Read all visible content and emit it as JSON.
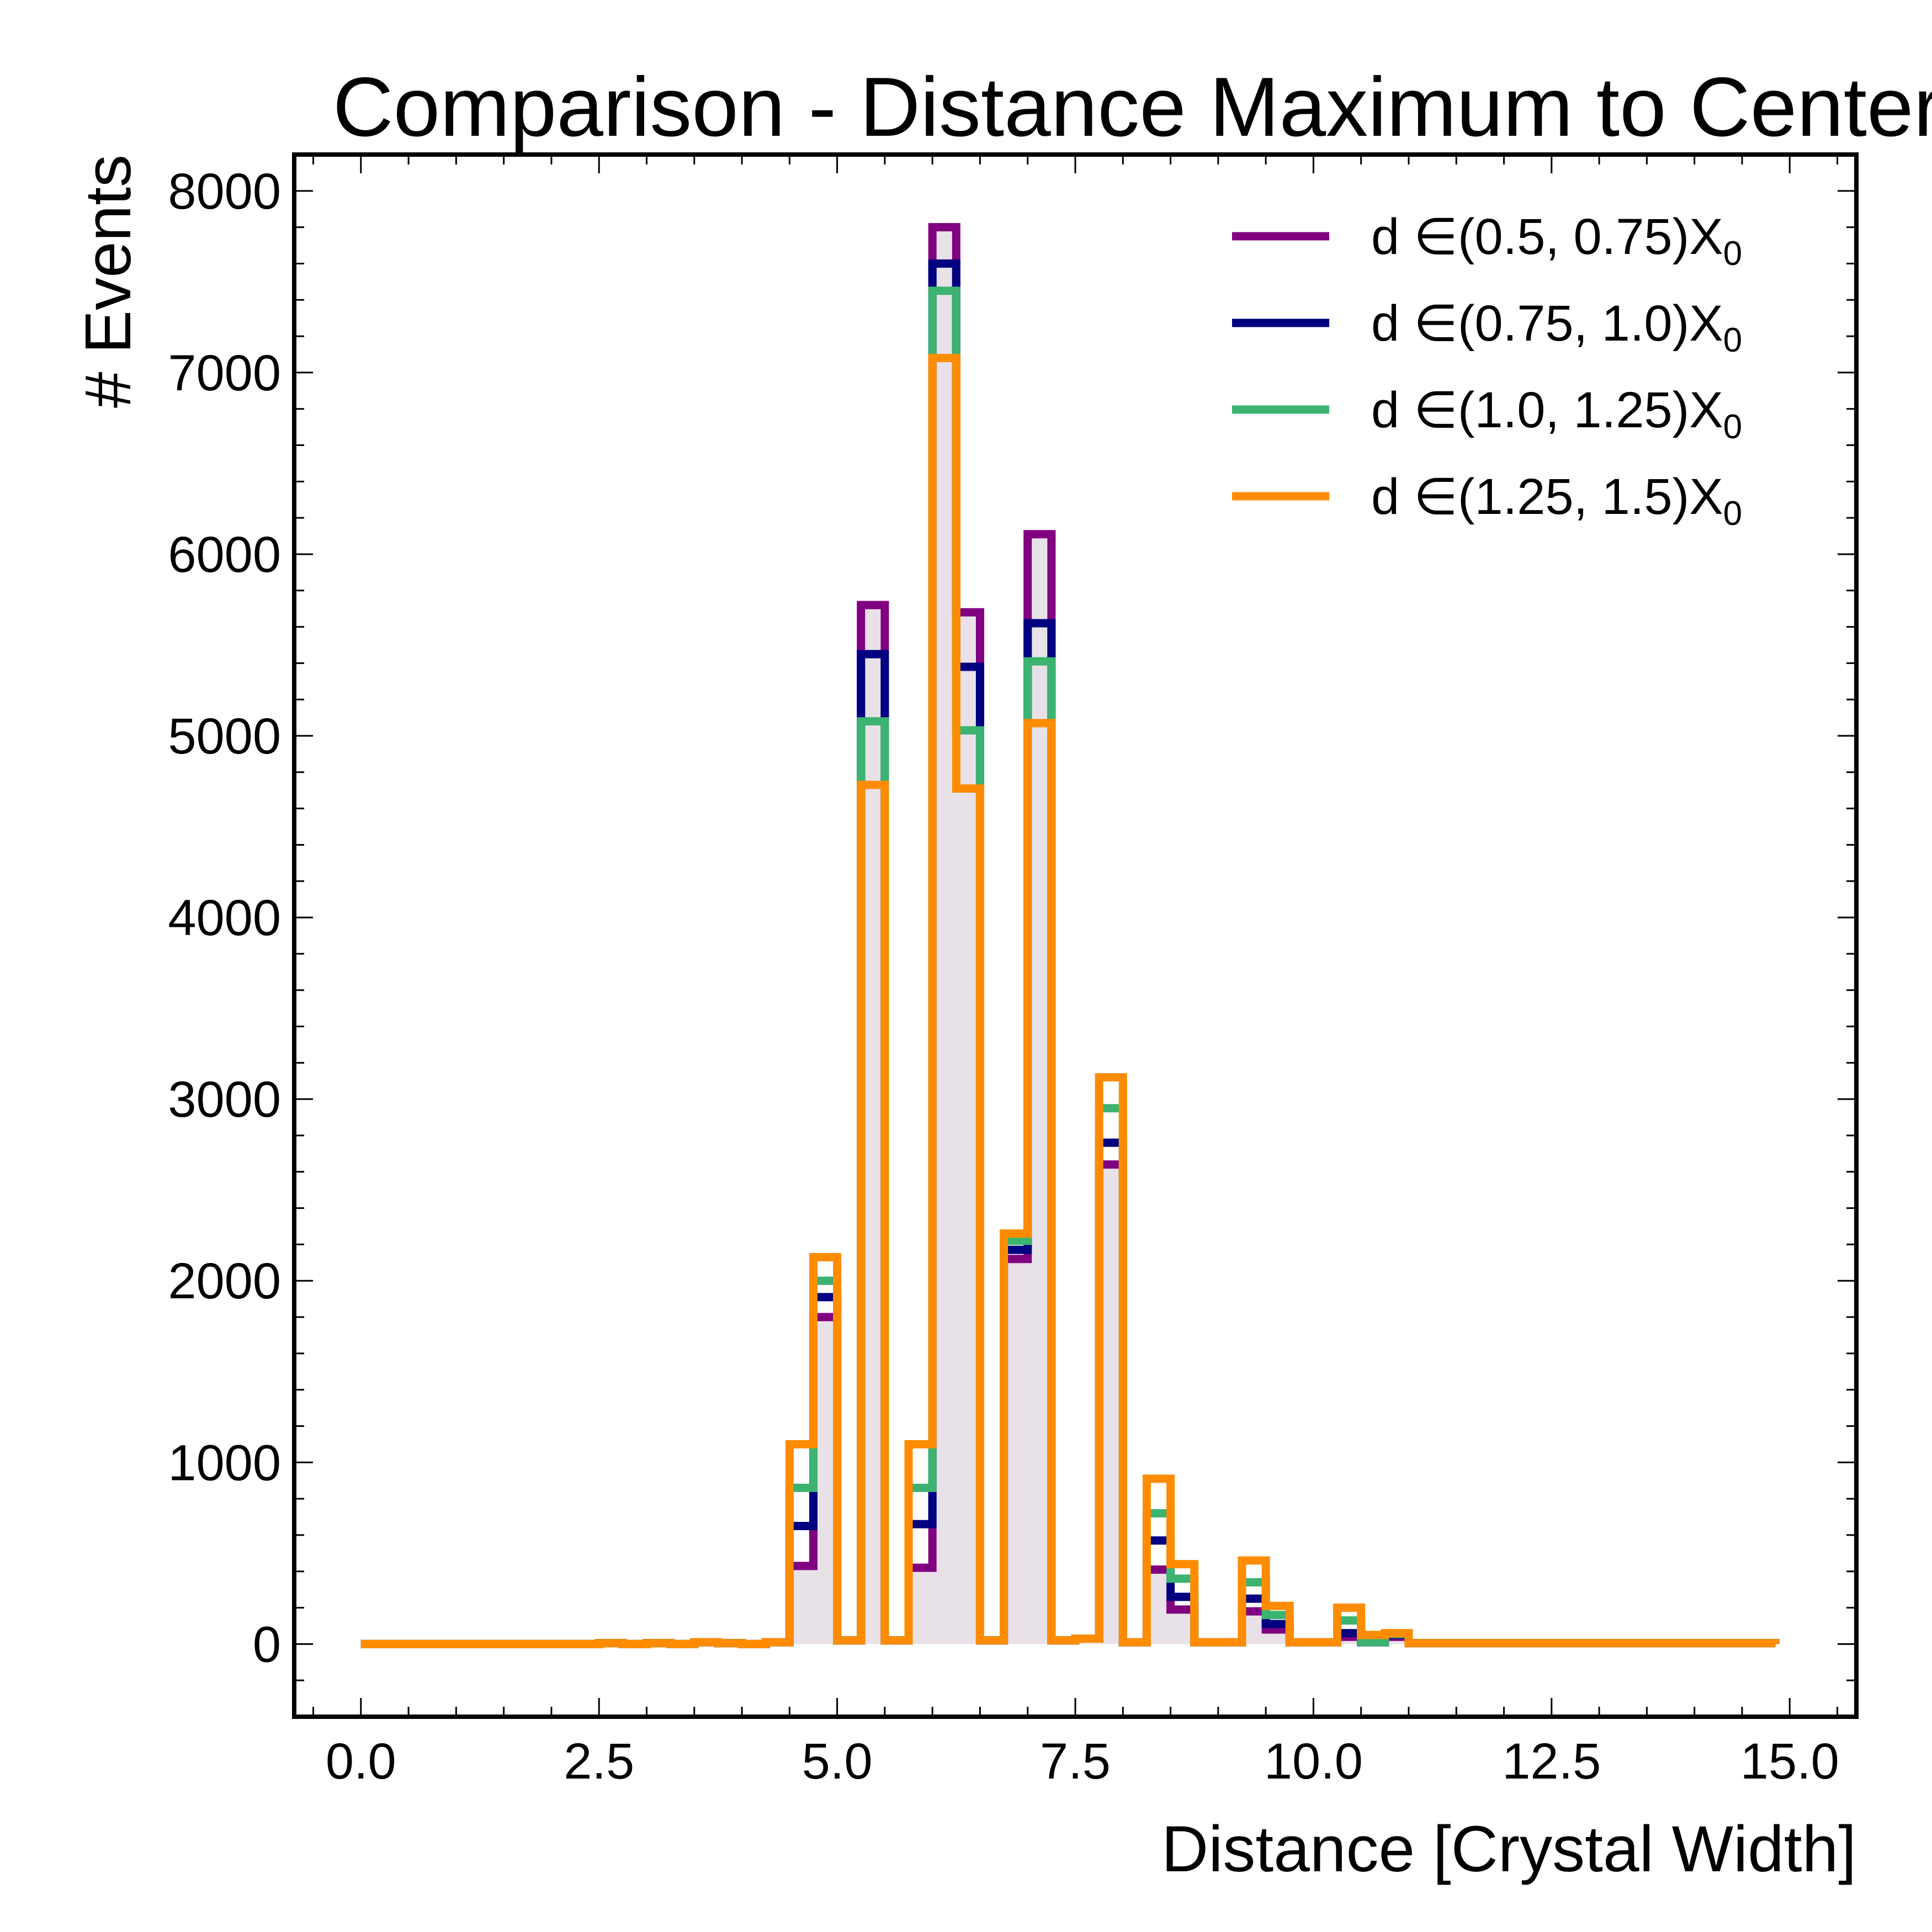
{
  "chart_data": {
    "type": "line",
    "title": "Comparison - Distance Maximum to Center",
    "xlabel": "Distance [Crystal Width]",
    "ylabel": "# Events",
    "xlim": [
      -0.7,
      15.7
    ],
    "ylim": [
      -400,
      8200
    ],
    "xticks": [
      0.0,
      2.5,
      5.0,
      7.5,
      10.0,
      12.5,
      15.0
    ],
    "xtick_labels": [
      "0.0",
      "2.5",
      "5.0",
      "7.5",
      "10.0",
      "12.5",
      "15.0"
    ],
    "yticks": [
      0,
      1000,
      2000,
      3000,
      4000,
      5000,
      6000,
      7000,
      8000
    ],
    "ytick_labels": [
      "0",
      "1000",
      "2000",
      "3000",
      "4000",
      "5000",
      "6000",
      "7000",
      "8000"
    ],
    "grid": false,
    "legend_position": "top-right",
    "bin_edges": [
      0.0,
      2.5,
      2.75,
      3.0,
      3.25,
      3.5,
      3.75,
      4.0,
      4.25,
      4.5,
      4.75,
      5.0,
      5.25,
      5.5,
      5.75,
      6.0,
      6.25,
      6.5,
      6.75,
      7.0,
      7.25,
      7.5,
      7.75,
      8.0,
      8.25,
      8.5,
      8.75,
      9.0,
      9.25,
      9.5,
      9.75,
      10.0,
      10.25,
      10.5,
      10.75,
      11.0,
      11.25,
      14.85
    ],
    "series": [
      {
        "name": "d ∈(0.5, 0.75)X",
        "name_subscript": "0",
        "color": "#800080",
        "fill": "#e8e2e8",
        "values": [
          0,
          5,
          0,
          5,
          0,
          10,
          5,
          0,
          10,
          430,
          1800,
          20,
          5720,
          20,
          420,
          7800,
          5680,
          20,
          2120,
          6110,
          20,
          30,
          2640,
          10,
          410,
          190,
          10,
          10,
          180,
          80,
          10,
          10,
          40,
          10,
          40,
          5,
          5,
          0
        ]
      },
      {
        "name": "d ∈(0.75, 1.0)X",
        "name_subscript": "0",
        "color": "#000080",
        "fill": "none",
        "values": [
          0,
          5,
          0,
          5,
          0,
          10,
          5,
          0,
          10,
          650,
          1910,
          20,
          5450,
          20,
          660,
          7600,
          5380,
          20,
          2170,
          5620,
          20,
          30,
          2760,
          10,
          570,
          260,
          10,
          10,
          250,
          110,
          10,
          10,
          60,
          10,
          50,
          5,
          5,
          0
        ]
      },
      {
        "name": "d ∈(1.0, 1.25)X",
        "name_subscript": "0",
        "color": "#3cb371",
        "fill": "none",
        "values": [
          0,
          5,
          0,
          5,
          0,
          10,
          5,
          0,
          10,
          860,
          2000,
          20,
          5080,
          20,
          860,
          7450,
          5030,
          20,
          2220,
          5410,
          20,
          30,
          2950,
          10,
          720,
          360,
          10,
          10,
          340,
          160,
          10,
          10,
          130,
          10,
          55,
          5,
          5,
          0
        ]
      },
      {
        "name": "d ∈(1.25, 1.5)X",
        "name_subscript": "0",
        "color": "#ff8c00",
        "fill": "none",
        "values": [
          0,
          5,
          0,
          5,
          0,
          10,
          5,
          0,
          10,
          1100,
          2130,
          20,
          4730,
          20,
          1100,
          7080,
          4710,
          20,
          2260,
          5070,
          20,
          30,
          3120,
          10,
          910,
          440,
          10,
          10,
          460,
          210,
          10,
          10,
          200,
          50,
          60,
          5,
          5,
          0
        ]
      }
    ]
  }
}
